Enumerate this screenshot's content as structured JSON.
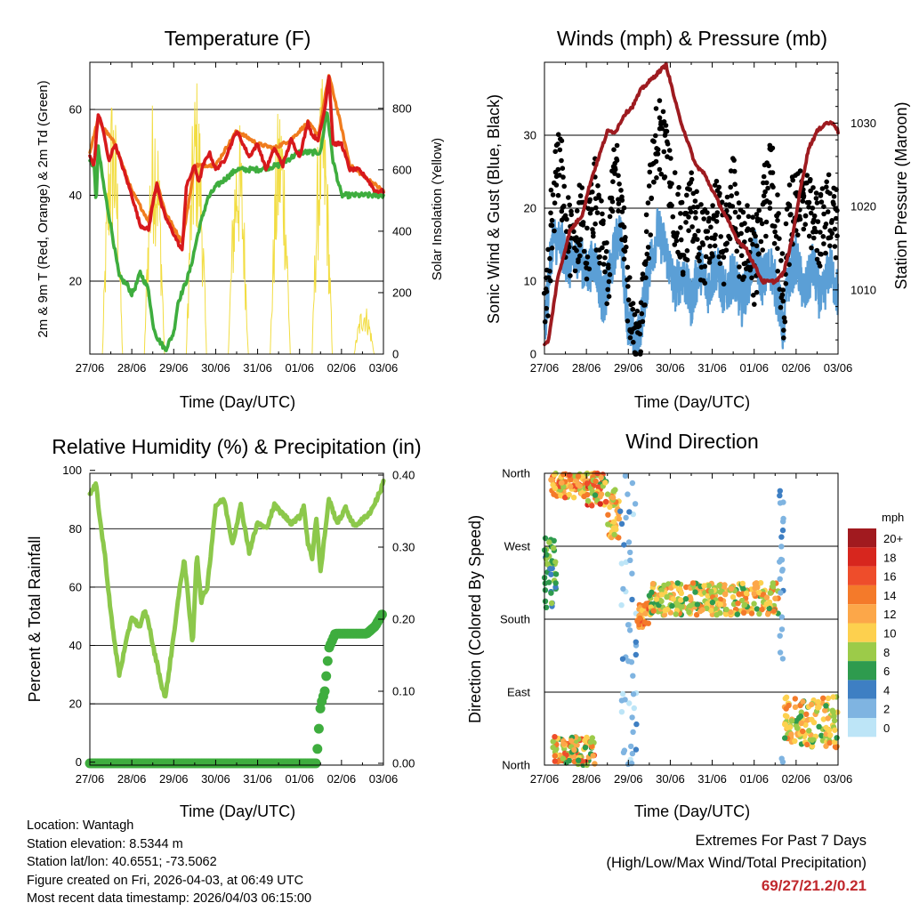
{
  "x_ticks": [
    "27/06",
    "28/06",
    "29/06",
    "30/06",
    "31/06",
    "01/06",
    "02/06",
    "03/06"
  ],
  "info": {
    "location": "Location: Wantagh",
    "elevation": "Station elevation: 8.5344 m",
    "latlon": "Station lat/lon: 40.6551; -73.5062",
    "created": "Figure created on Fri, 2026-04-03, at 06:49 UTC",
    "recent": "Most recent data timestamp: 2026/04/03 06:15:00"
  },
  "extremes": {
    "title": "Extremes For Past 7 Days",
    "subtitle": "(High/Low/Max Wind/Total Precipitation)",
    "values": "69/27/21.2/0.21"
  },
  "colors": {
    "red": "#d7191c",
    "orange": "#f07c1e",
    "green": "#3ead3e",
    "yellow": "#f2dd43",
    "blue": "#5b9fd6",
    "black": "#000000",
    "maroon": "#9e1b20",
    "lightgreen": "#8cc84b",
    "rain": "#3ead3e"
  },
  "chart_data": [
    {
      "type": "line",
      "title": "Temperature (F)",
      "xlabel": "Time (Day/UTC)",
      "ylabel": "2m & 9m T (Red, Orange) & 2m Td (Green)",
      "y2label": "Solar Insolation (Yellow)",
      "xlim": [
        0,
        7
      ],
      "ylim": [
        3,
        71
      ],
      "y2lim": [
        0,
        950
      ],
      "yticks": [
        20,
        40,
        60
      ],
      "y2ticks": [
        0,
        200,
        400,
        600,
        800
      ],
      "series": [
        {
          "name": "2m T",
          "color": "#d7191c",
          "x": [
            0,
            0.1,
            0.2,
            0.3,
            0.45,
            0.6,
            0.8,
            1.0,
            1.2,
            1.4,
            1.5,
            1.6,
            1.7,
            1.8,
            2.0,
            2.2,
            2.3,
            2.5,
            2.6,
            2.7,
            2.85,
            3.0,
            3.2,
            3.5,
            3.8,
            4.0,
            4.2,
            4.4,
            4.6,
            4.8,
            5.0,
            5.1,
            5.2,
            5.3,
            5.45,
            5.6,
            5.7,
            5.8,
            6.0,
            6.2,
            6.4,
            6.6,
            6.8,
            7.0
          ],
          "y": [
            49,
            47,
            59,
            56,
            48,
            52,
            46,
            40,
            33,
            32,
            38,
            43,
            38,
            35,
            31,
            27,
            42,
            47,
            43,
            47,
            50,
            46,
            48,
            55,
            49,
            52,
            46,
            51,
            47,
            53,
            49,
            53,
            57,
            54,
            53,
            60,
            68,
            52,
            52,
            46,
            46,
            44,
            41,
            41
          ]
        },
        {
          "name": "9m T",
          "color": "#f07c1e",
          "x": [
            0,
            0.2,
            0.3,
            0.6,
            1.0,
            1.4,
            1.6,
            1.8,
            2.2,
            2.5,
            3.0,
            3.5,
            4.0,
            4.4,
            4.8,
            5.2,
            5.45,
            5.7,
            5.9,
            6.2,
            6.6,
            7.0
          ],
          "y": [
            50,
            58,
            56,
            52,
            41,
            34,
            43,
            36,
            29,
            47,
            47,
            55,
            52,
            51,
            53,
            57,
            54,
            68,
            60,
            47,
            44,
            41
          ]
        },
        {
          "name": "2m Td",
          "color": "#3ead3e",
          "x": [
            0,
            0.1,
            0.15,
            0.2,
            0.35,
            0.5,
            0.7,
            0.9,
            1.0,
            1.1,
            1.2,
            1.3,
            1.4,
            1.5,
            1.6,
            1.8,
            2.0,
            2.1,
            2.3,
            2.4,
            2.6,
            2.8,
            3.0,
            3.5,
            4.0,
            4.5,
            5.0,
            5.3,
            5.5,
            5.65,
            5.8,
            6.0,
            6.3,
            6.6,
            7.0
          ],
          "y": [
            48,
            47,
            38,
            51,
            41,
            33,
            21,
            19,
            17,
            19,
            22,
            20,
            18,
            10,
            7,
            4,
            8,
            15,
            20,
            23,
            32,
            39,
            42,
            46,
            46,
            47,
            50,
            50,
            50,
            60,
            48,
            40,
            40,
            40,
            40
          ]
        },
        {
          "name": "Solar Insolation",
          "color": "#f2dd43",
          "axis": "y2",
          "x": [
            0,
            0.3,
            0.45,
            0.55,
            0.75,
            1.0,
            1.3,
            1.45,
            1.55,
            1.75,
            2.0,
            2.3,
            2.45,
            2.55,
            2.75,
            3.0,
            3.3,
            3.45,
            3.55,
            3.75,
            4.0,
            4.3,
            4.45,
            4.55,
            4.75,
            5.0,
            5.3,
            5.45,
            5.55,
            5.75,
            6.0,
            6.3,
            6.45,
            6.55,
            6.75,
            7.0
          ],
          "y": [
            0,
            0,
            880,
            520,
            0,
            0,
            0,
            880,
            650,
            0,
            0,
            0,
            920,
            620,
            0,
            0,
            0,
            780,
            500,
            0,
            0,
            0,
            860,
            480,
            0,
            0,
            0,
            900,
            600,
            0,
            0,
            0,
            170,
            150,
            0,
            0
          ]
        }
      ]
    },
    {
      "type": "line",
      "title": "Winds (mph) & Pressure (mb)",
      "xlabel": "Time (Day/UTC)",
      "ylabel": "Sonic Wind & Gust (Blue, Black)",
      "y2label": "Station Pressure (Maroon)",
      "xlim": [
        0,
        7
      ],
      "ylim": [
        0,
        40
      ],
      "y2lim": [
        1002.3,
        1037.3
      ],
      "yticks": [
        0,
        10,
        20,
        30
      ],
      "y2ticks": [
        1010,
        1020,
        1030
      ],
      "series": [
        {
          "name": "Sonic Wind",
          "color": "#5b9fd6",
          "x": [
            0,
            0.1,
            0.2,
            0.4,
            0.6,
            0.8,
            1.0,
            1.2,
            1.4,
            1.6,
            1.7,
            1.8,
            2.0,
            2.2,
            2.4,
            2.5,
            2.7,
            2.9,
            3.1,
            3.3,
            3.5,
            3.7,
            3.9,
            4.1,
            4.3,
            4.5,
            4.7,
            4.9,
            5.0,
            5.2,
            5.4,
            5.6,
            5.7,
            5.8,
            6.0,
            6.2,
            6.4,
            6.6,
            6.8,
            7.0
          ],
          "y": [
            3,
            10,
            16,
            15,
            12,
            14,
            11,
            13,
            7,
            12,
            15,
            17,
            4,
            1,
            8,
            12,
            17,
            14,
            9,
            11,
            7,
            12,
            9,
            12,
            8,
            11,
            7,
            11,
            14,
            10,
            12,
            7,
            3,
            10,
            13,
            8,
            12,
            7,
            12,
            8
          ]
        },
        {
          "name": "Sonic Gust",
          "color": "#000000",
          "x": [
            0,
            0.1,
            0.2,
            0.3,
            0.4,
            0.5,
            0.7,
            0.9,
            1.0,
            1.2,
            1.4,
            1.5,
            1.6,
            1.7,
            1.8,
            1.9,
            2.0,
            2.1,
            2.2,
            2.3,
            2.4,
            2.5,
            2.7,
            2.9,
            3.1,
            3.3,
            3.5,
            3.7,
            3.9,
            4.1,
            4.3,
            4.5,
            4.7,
            4.9,
            5.0,
            5.2,
            5.4,
            5.6,
            5.7,
            5.8,
            6.0,
            6.2,
            6.4,
            6.6,
            6.8,
            7.0
          ],
          "y": [
            3,
            12,
            20,
            26,
            24,
            17,
            15,
            20,
            14,
            22,
            13,
            10,
            20,
            26,
            24,
            18,
            8,
            2,
            0,
            4,
            14,
            20,
            31,
            27,
            20,
            15,
            20,
            16,
            14,
            20,
            14,
            23,
            14,
            16,
            11,
            20,
            24,
            14,
            6,
            17,
            22,
            20,
            18,
            17,
            20,
            18
          ]
        },
        {
          "name": "Station Pressure",
          "color": "#9e1b20",
          "axis": "y2",
          "x": [
            0,
            0.1,
            0.3,
            0.6,
            0.9,
            1.1,
            1.3,
            1.5,
            1.7,
            1.9,
            2.1,
            2.3,
            2.5,
            2.7,
            2.9,
            3.0,
            3.2,
            3.4,
            3.6,
            3.8,
            4.0,
            4.2,
            4.4,
            4.6,
            4.8,
            5.0,
            5.2,
            5.4,
            5.5,
            5.7,
            5.9,
            6.1,
            6.3,
            6.5,
            6.7,
            6.9,
            7.0
          ],
          "y": [
            1003.3,
            1004,
            1011,
            1017,
            1019,
            1023,
            1026,
            1029,
            1029,
            1031,
            1032,
            1034,
            1035,
            1036,
            1037,
            1035,
            1031,
            1028,
            1025,
            1024,
            1022,
            1020,
            1018,
            1016,
            1015,
            1013,
            1011,
            1011,
            1011,
            1012,
            1016,
            1022,
            1027,
            1029,
            1030,
            1030,
            1029
          ]
        }
      ]
    },
    {
      "type": "line",
      "title": "Relative Humidity (%) & Precipitation (in)",
      "xlabel": "Time (Day/UTC)",
      "ylabel": "Percent & Total Rainfall",
      "xlim": [
        0,
        7
      ],
      "ylim": [
        -1,
        99
      ],
      "y2lim": [
        -0.0025,
        0.4025
      ],
      "yticks": [
        0,
        20,
        40,
        60,
        80,
        100
      ],
      "y2ticks": [
        0.0,
        0.1,
        0.2,
        0.3,
        0.4
      ],
      "series": [
        {
          "name": "Relative Humidity",
          "color": "#8cc84b",
          "x": [
            0,
            0.15,
            0.25,
            0.35,
            0.45,
            0.55,
            0.7,
            0.85,
            1.0,
            1.2,
            1.3,
            1.4,
            1.5,
            1.6,
            1.7,
            1.8,
            1.95,
            2.1,
            2.25,
            2.35,
            2.45,
            2.55,
            2.65,
            2.8,
            3.0,
            3.2,
            3.4,
            3.6,
            3.8,
            4.0,
            4.2,
            4.4,
            4.6,
            4.8,
            5.0,
            5.1,
            5.2,
            5.3,
            5.4,
            5.5,
            5.6,
            5.7,
            5.9,
            6.1,
            6.3,
            6.5,
            6.7,
            6.9,
            7.0
          ],
          "y": [
            92,
            95,
            82,
            72,
            58,
            45,
            30,
            40,
            50,
            46,
            52,
            48,
            40,
            34,
            27,
            22,
            38,
            55,
            70,
            55,
            40,
            72,
            55,
            60,
            88,
            90,
            75,
            88,
            72,
            82,
            80,
            88,
            85,
            82,
            84,
            88,
            75,
            70,
            84,
            65,
            78,
            90,
            82,
            87,
            81,
            83,
            86,
            92,
            96
          ]
        },
        {
          "name": "Precipitation",
          "color": "#3ead3e",
          "axis": "y2",
          "x": [
            0,
            5.0,
            5.4,
            5.5,
            5.6,
            5.7,
            5.85,
            6.0,
            6.2,
            6.4,
            6.6,
            6.8,
            6.9,
            7.0
          ],
          "y": [
            0,
            0,
            0,
            0.08,
            0.1,
            0.16,
            0.18,
            0.18,
            0.18,
            0.18,
            0.18,
            0.19,
            0.2,
            0.21
          ]
        }
      ]
    },
    {
      "type": "scatter",
      "title": "Wind Direction",
      "xlabel": "Time (Day/UTC)",
      "ylabel": "Direction (Colored By Speed)",
      "xlim": [
        0,
        7
      ],
      "ylim": [
        0,
        360
      ],
      "yticks": [
        "North",
        "East",
        "South",
        "West",
        "North"
      ],
      "legend_title": "mph",
      "legend_labels": [
        "20+",
        "18",
        "16",
        "14",
        "12",
        "10",
        "8",
        "6",
        "4",
        "2",
        "0"
      ],
      "legend_colors": [
        "#a11a1f",
        "#d7261e",
        "#ee4d2b",
        "#f47a2a",
        "#fca749",
        "#fdd04e",
        "#9ccb49",
        "#2e9b4e",
        "#3e7fc3",
        "#7fb4e1",
        "#bde5f7"
      ],
      "clusters": [
        {
          "x": [
            0.0,
            0.3
          ],
          "dir": [
            190,
            280
          ],
          "speed": [
            4,
            8
          ]
        },
        {
          "x": [
            0.15,
            1.0
          ],
          "dir": [
            330,
            360
          ],
          "speed": [
            8,
            16
          ]
        },
        {
          "x": [
            1.0,
            1.5
          ],
          "dir": [
            320,
            360
          ],
          "speed": [
            6,
            18
          ]
        },
        {
          "x": [
            1.5,
            1.8
          ],
          "dir": [
            280,
            340
          ],
          "speed": [
            8,
            14
          ]
        },
        {
          "x": [
            0.2,
            1.2
          ],
          "dir": [
            0,
            35
          ],
          "speed": [
            6,
            16
          ]
        },
        {
          "x": [
            1.8,
            2.2
          ],
          "dir": [
            0,
            360
          ],
          "speed": [
            0,
            4
          ]
        },
        {
          "x": [
            2.2,
            2.5
          ],
          "dir": [
            170,
            200
          ],
          "speed": [
            10,
            16
          ]
        },
        {
          "x": [
            2.5,
            5.6
          ],
          "dir": [
            185,
            225
          ],
          "speed": [
            6,
            14
          ]
        },
        {
          "x": [
            5.6,
            5.7
          ],
          "dir": [
            0,
            360
          ],
          "speed": [
            1,
            4
          ]
        },
        {
          "x": [
            5.7,
            7.0
          ],
          "dir": [
            20,
            85
          ],
          "speed": [
            6,
            14
          ]
        }
      ]
    }
  ]
}
